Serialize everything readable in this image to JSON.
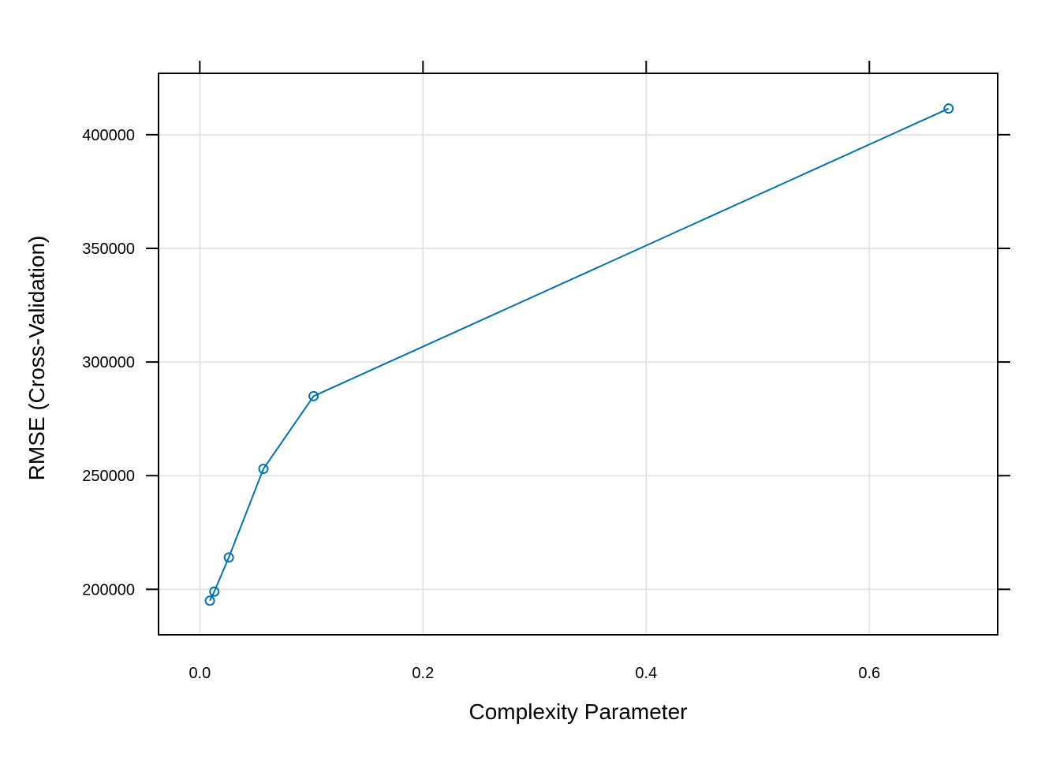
{
  "chart_data": {
    "type": "line",
    "title": "",
    "xlabel": "Complexity Parameter",
    "ylabel": "RMSE (Cross-Validation)",
    "xlim": [
      -0.037,
      0.715
    ],
    "ylim": [
      180000,
      427000
    ],
    "x_ticks": [
      0.0,
      0.2,
      0.4,
      0.6
    ],
    "x_tick_labels": [
      "0.0",
      "0.2",
      "0.4",
      "0.6"
    ],
    "y_ticks": [
      200000,
      250000,
      300000,
      350000,
      400000
    ],
    "y_tick_labels": [
      "200000",
      "250000",
      "300000",
      "350000",
      "400000"
    ],
    "grid": true,
    "series": [
      {
        "color": "#0072b2",
        "x": [
          0.009,
          0.013,
          0.026,
          0.057,
          0.102,
          0.671
        ],
        "y": [
          195000,
          199000,
          214000,
          253000,
          285000,
          411500
        ]
      }
    ]
  }
}
